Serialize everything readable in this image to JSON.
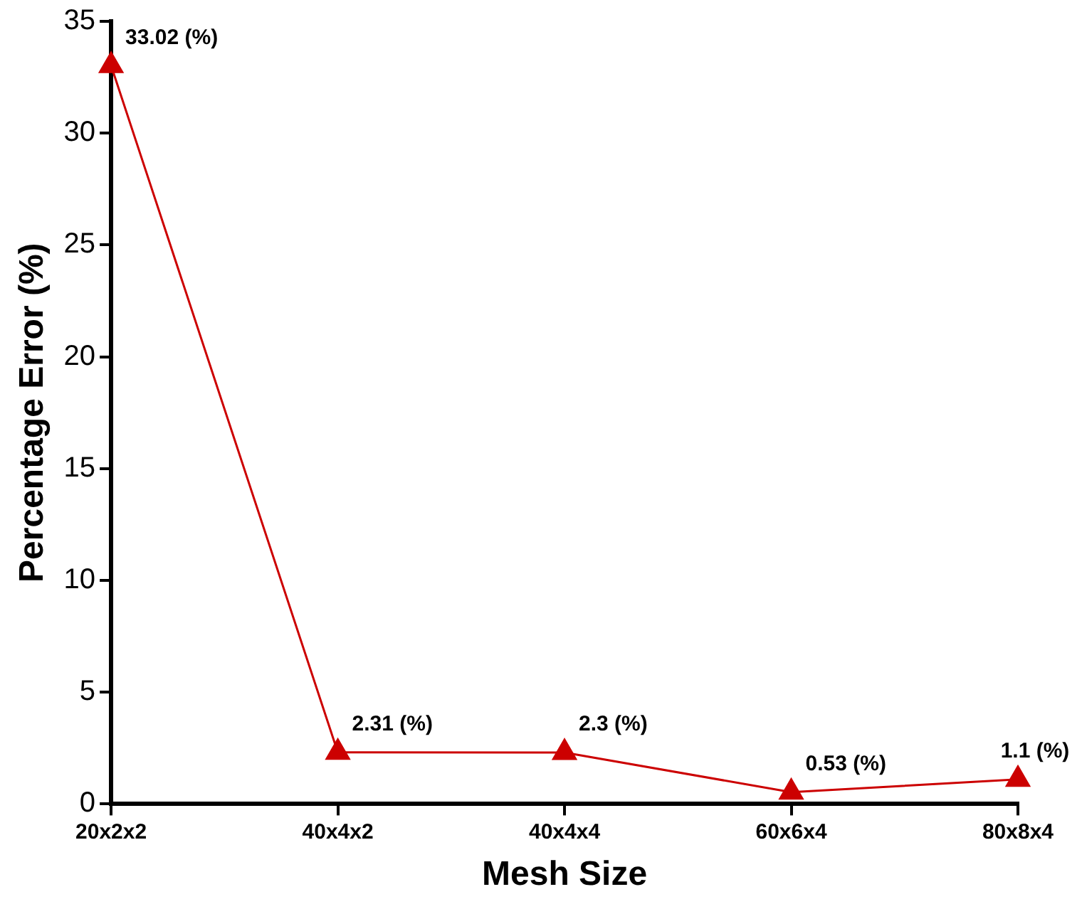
{
  "chart_data": {
    "type": "line",
    "xlabel": "Mesh Size",
    "ylabel": "Percentage Error (%)",
    "categories": [
      "20x2x2",
      "40x4x2",
      "40x4x4",
      "60x6x4",
      "80x8x4"
    ],
    "values": [
      33.02,
      2.31,
      2.3,
      0.53,
      1.1
    ],
    "value_labels": [
      "33.02 (%)",
      "2.31 (%)",
      "2.3 (%)",
      "0.53 (%)",
      "1.1 (%)"
    ],
    "color": "#cc0000",
    "marker": "triangle",
    "line_style": "solid",
    "ylim": [
      0,
      35
    ],
    "yticks": [
      0,
      5,
      10,
      15,
      20,
      25,
      30,
      35
    ],
    "grid": false,
    "legend": false
  }
}
